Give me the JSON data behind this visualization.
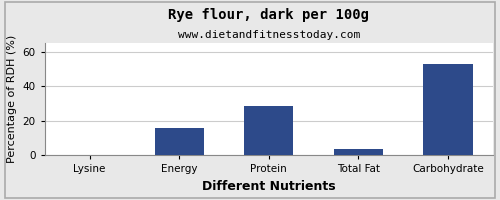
{
  "title": "Rye flour, dark per 100g",
  "subtitle": "www.dietandfitnesstoday.com",
  "xlabel": "Different Nutrients",
  "ylabel": "Percentage of RDH (%)",
  "categories": [
    "Lysine",
    "Energy",
    "Protein",
    "Total Fat",
    "Carbohydrate"
  ],
  "values": [
    0,
    16,
    28.5,
    3.5,
    53
  ],
  "bar_color": "#2d4a8a",
  "ylim": [
    0,
    65
  ],
  "yticks": [
    0,
    20,
    40,
    60
  ],
  "background_color": "#e8e8e8",
  "plot_background": "#ffffff",
  "title_fontsize": 10,
  "subtitle_fontsize": 8,
  "axis_label_fontsize": 8,
  "tick_fontsize": 7.5,
  "xlabel_fontsize": 9,
  "xlabel_fontweight": "bold"
}
